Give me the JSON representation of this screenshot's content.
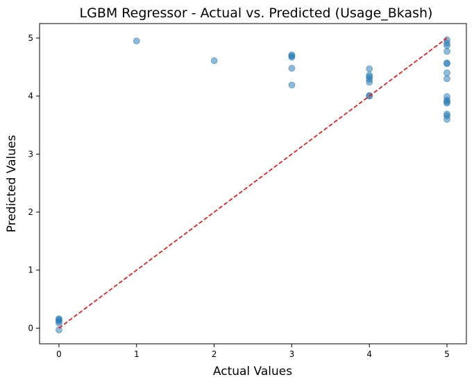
{
  "chart_data": {
    "type": "scatter",
    "title": "LGBM Regressor - Actual vs. Predicted (Usage_Bkash)",
    "xlabel": "Actual Values",
    "ylabel": "Predicted Values",
    "xlim": [
      -0.25,
      5.25
    ],
    "ylim": [
      -0.27,
      5.25
    ],
    "xticks": [
      0,
      1,
      2,
      3,
      4,
      5
    ],
    "yticks": [
      0,
      1,
      2,
      3,
      4,
      5
    ],
    "grid": false,
    "series": [
      {
        "x": [
          0,
          0,
          0,
          0,
          0,
          1,
          2,
          3,
          3,
          3,
          3,
          3,
          4,
          4,
          4,
          4,
          4,
          4,
          4,
          5,
          5,
          5,
          5,
          5,
          5,
          5,
          5,
          5,
          5,
          5,
          5,
          5,
          5,
          5
        ],
        "y": [
          0.16,
          0.15,
          0.12,
          0.09,
          -0.03,
          4.95,
          4.61,
          4.71,
          4.69,
          4.67,
          4.48,
          4.19,
          4.47,
          4.36,
          4.33,
          4.29,
          4.24,
          4.01,
          4.0,
          4.97,
          4.91,
          4.87,
          4.77,
          4.57,
          4.56,
          4.4,
          4.3,
          3.99,
          3.93,
          3.9,
          3.88,
          3.69,
          3.66,
          3.6
        ]
      }
    ],
    "reference_line": {
      "x": [
        0,
        5
      ],
      "y": [
        0,
        5
      ],
      "style": "dashed"
    },
    "colors": {
      "points": "#1f77b4",
      "reference": "#ff0000"
    }
  }
}
